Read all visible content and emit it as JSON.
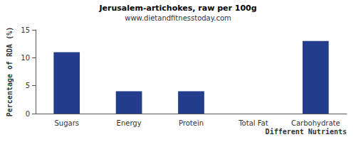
{
  "chart_data": {
    "type": "bar",
    "title": "Jerusalem-artichokes, raw per 100g",
    "subtitle": "www.dietandfitnesstoday.com",
    "x_label": "Different Nutrients",
    "y_label": "Percentage of RDA (%)",
    "categories": [
      "Sugars",
      "Energy",
      "Protein",
      "Total Fat",
      "Carbohydrate"
    ],
    "values": [
      11,
      4,
      4,
      0,
      13
    ],
    "color": "#233c8c",
    "ylim": [
      0,
      15
    ],
    "yticks": [
      0,
      5,
      10,
      15
    ],
    "grid": false
  }
}
